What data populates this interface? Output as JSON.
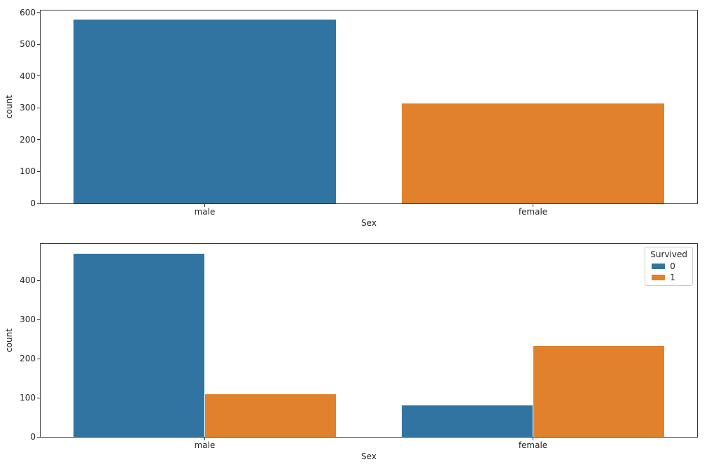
{
  "figure": {
    "background": "#ffffff",
    "spine_color": "#333333",
    "text_color": "#262626"
  },
  "chart_data": [
    {
      "type": "bar",
      "title": "",
      "xlabel": "Sex",
      "ylabel": "count",
      "categories": [
        "male",
        "female"
      ],
      "series": [
        {
          "name": "count",
          "values": [
            577,
            314
          ],
          "colors": [
            "#3274A1",
            "#E1812C"
          ]
        }
      ],
      "yticks": [
        0,
        100,
        200,
        300,
        400,
        500,
        600
      ],
      "ylim": [
        0,
        606
      ],
      "bar_group_fraction": 0.8,
      "grid": false,
      "legend": null
    },
    {
      "type": "bar",
      "title": "",
      "xlabel": "Sex",
      "ylabel": "count",
      "categories": [
        "male",
        "female"
      ],
      "series": [
        {
          "name": "0",
          "values": [
            468,
            81
          ],
          "colors": [
            "#3274A1",
            "#3274A1"
          ]
        },
        {
          "name": "1",
          "values": [
            109,
            233
          ],
          "colors": [
            "#E1812C",
            "#E1812C"
          ]
        }
      ],
      "yticks": [
        0,
        100,
        200,
        300,
        400
      ],
      "ylim": [
        0,
        493
      ],
      "bar_group_fraction": 0.8,
      "grid": false,
      "legend": {
        "title": "Survived",
        "position": "upper right",
        "entries": [
          {
            "label": "0",
            "color": "#3274A1"
          },
          {
            "label": "1",
            "color": "#E1812C"
          }
        ]
      }
    }
  ]
}
